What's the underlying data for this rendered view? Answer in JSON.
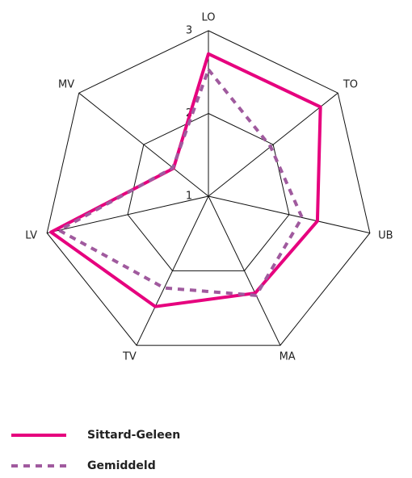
{
  "chart_data": {
    "type": "radar",
    "categories": [
      "LO",
      "TO",
      "UB",
      "MA",
      "TV",
      "LV",
      "MV"
    ],
    "rlim": [
      1,
      3
    ],
    "rticks": [
      1,
      2,
      3
    ],
    "grid": true,
    "legend": "bottom-left",
    "series": [
      {
        "name": "Sittard-Geleen",
        "color": "#e6007e",
        "dashed": false,
        "values": [
          2.72,
          2.73,
          2.35,
          2.3,
          2.48,
          2.95,
          1.54
        ]
      },
      {
        "name": "Gemiddeld",
        "color": "#a05a9e",
        "dashed": true,
        "values": [
          2.53,
          1.96,
          2.16,
          2.33,
          2.23,
          2.85,
          1.55
        ]
      }
    ]
  }
}
